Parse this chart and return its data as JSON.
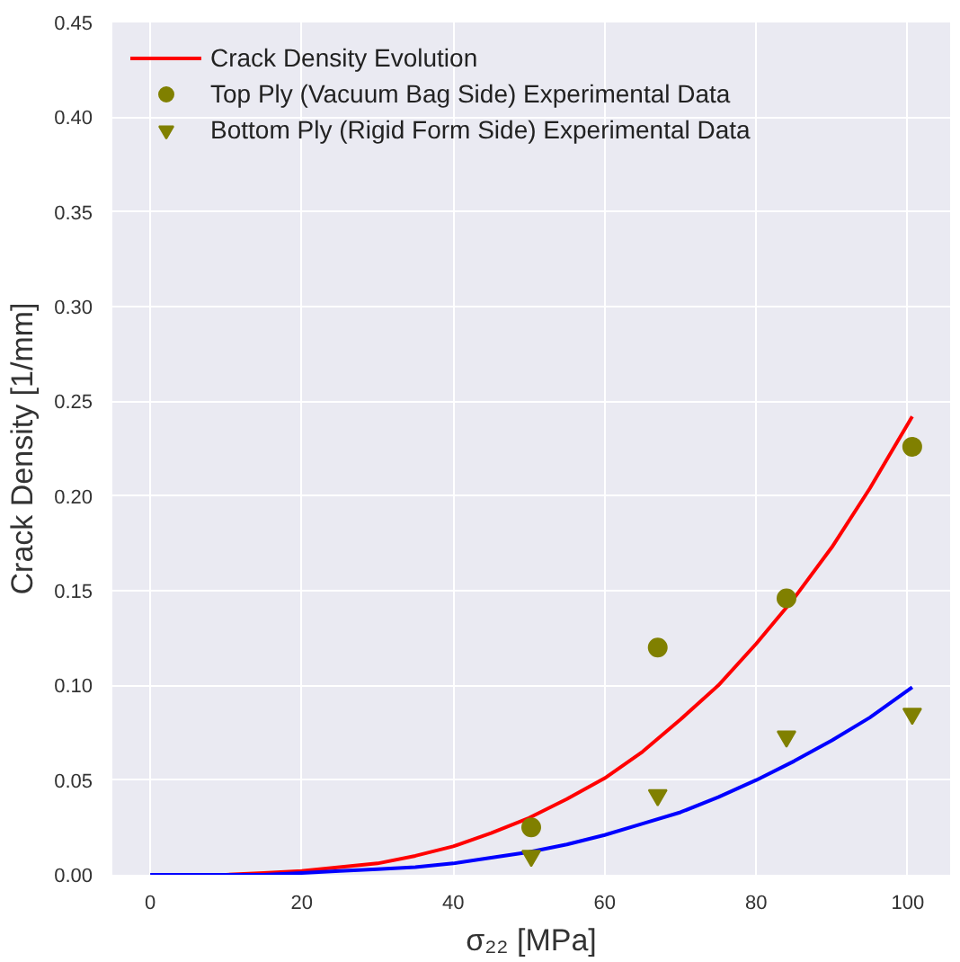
{
  "chart_data": {
    "type": "line",
    "xlabel": "σ₂₂ [MPa]",
    "ylabel": "Crack Density [1/mm]",
    "xlim": [
      -5,
      105.6
    ],
    "ylim": [
      0,
      0.45
    ],
    "xticks": [
      0,
      20,
      40,
      60,
      80,
      100
    ],
    "yticks": [
      {
        "value": 0,
        "label": "0.00"
      },
      {
        "value": 0.05,
        "label": "0.05"
      },
      {
        "value": 0.1,
        "label": "0.10"
      },
      {
        "value": 0.15,
        "label": "0.15"
      },
      {
        "value": 0.2,
        "label": "0.20"
      },
      {
        "value": 0.25,
        "label": "0.25"
      },
      {
        "value": 0.3,
        "label": "0.30"
      },
      {
        "value": 0.35,
        "label": "0.35"
      },
      {
        "value": 0.4,
        "label": "0.40"
      },
      {
        "value": 0.45,
        "label": "0.45"
      }
    ],
    "grid": true,
    "legend": "top left",
    "series": [
      {
        "name": "Crack Density Evolution",
        "color": "#ff0000",
        "x": [
          10,
          15,
          20,
          25,
          30,
          35,
          40,
          45,
          50,
          55,
          60,
          65,
          70,
          75,
          80,
          85,
          90,
          95,
          100.6
        ],
        "values": [
          0.0,
          0.001,
          0.002,
          0.004,
          0.006,
          0.01,
          0.015,
          0.022,
          0.03,
          0.04,
          0.051,
          0.065,
          0.082,
          0.1,
          0.122,
          0.146,
          0.173,
          0.204,
          0.242
        ]
      },
      {
        "color": "#0000ff",
        "x": [
          0,
          5,
          10,
          15,
          20,
          25,
          30,
          35,
          40,
          45,
          50,
          55,
          60,
          65,
          70,
          75,
          80,
          85,
          90,
          95,
          100.6
        ],
        "values": [
          0,
          0,
          0,
          0,
          0.001,
          0.002,
          0.003,
          0.004,
          0.006,
          0.009,
          0.012,
          0.016,
          0.021,
          0.027,
          0.033,
          0.041,
          0.05,
          0.06,
          0.071,
          0.083,
          0.099
        ]
      },
      {
        "name": "Top Ply (Vacuum Bag Side) Experimental Data",
        "type": "scatter",
        "marker": "circle",
        "color": "#808000",
        "x": [
          50.3,
          67,
          84,
          100.6
        ],
        "values": [
          0.025,
          0.12,
          0.146,
          0.226
        ]
      },
      {
        "name": "Bottom Ply (Rigid Form Side) Experimental Data",
        "type": "scatter",
        "marker": "triangle",
        "color": "#808000",
        "x": [
          50.3,
          67,
          84,
          100.6
        ],
        "values": [
          0.01,
          0.042,
          0.073,
          0.085
        ]
      }
    ]
  }
}
